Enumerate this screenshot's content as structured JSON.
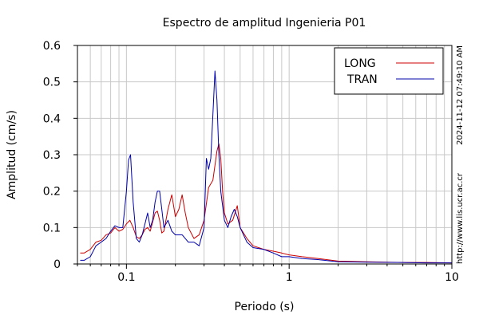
{
  "chart_data": {
    "type": "line",
    "title": "Espectro de amplitud Ingenieria P01",
    "xlabel": "Periodo (s)",
    "ylabel": "Amplitud (cm/s)",
    "x_scale": "log",
    "xlim": [
      0.05,
      10
    ],
    "ylim": [
      0,
      0.6
    ],
    "x_tick_labels": [
      {
        "value": 0.1,
        "label": "0.1"
      },
      {
        "value": 1,
        "label": "1"
      },
      {
        "value": 10,
        "label": "10"
      }
    ],
    "y_tick_labels": [
      {
        "value": 0,
        "label": "0"
      },
      {
        "value": 0.1,
        "label": "0.1"
      },
      {
        "value": 0.2,
        "label": "0.2"
      },
      {
        "value": 0.3,
        "label": "0.3"
      },
      {
        "value": 0.4,
        "label": "0.4"
      },
      {
        "value": 0.5,
        "label": "0.5"
      },
      {
        "value": 0.6,
        "label": "0.6"
      }
    ],
    "grid": true,
    "legend_position": "top-right",
    "series": [
      {
        "name": "LONG",
        "color": "#cc0000",
        "x": [
          0.052,
          0.055,
          0.06,
          0.065,
          0.07,
          0.075,
          0.08,
          0.085,
          0.09,
          0.095,
          0.1,
          0.105,
          0.11,
          0.115,
          0.12,
          0.125,
          0.13,
          0.135,
          0.14,
          0.15,
          0.155,
          0.16,
          0.165,
          0.17,
          0.18,
          0.19,
          0.2,
          0.21,
          0.22,
          0.23,
          0.24,
          0.26,
          0.28,
          0.3,
          0.32,
          0.34,
          0.36,
          0.37,
          0.38,
          0.39,
          0.4,
          0.42,
          0.45,
          0.48,
          0.5,
          0.55,
          0.6,
          0.7,
          0.8,
          0.9,
          1.0,
          1.2,
          1.5,
          2.0,
          3.0,
          5.0,
          7.0,
          10.0
        ],
        "y": [
          0.03,
          0.03,
          0.04,
          0.06,
          0.065,
          0.08,
          0.085,
          0.1,
          0.09,
          0.095,
          0.11,
          0.12,
          0.1,
          0.075,
          0.07,
          0.08,
          0.095,
          0.1,
          0.09,
          0.14,
          0.145,
          0.12,
          0.085,
          0.09,
          0.15,
          0.19,
          0.13,
          0.15,
          0.19,
          0.14,
          0.1,
          0.07,
          0.08,
          0.12,
          0.21,
          0.23,
          0.31,
          0.33,
          0.29,
          0.2,
          0.14,
          0.11,
          0.12,
          0.16,
          0.1,
          0.07,
          0.05,
          0.04,
          0.035,
          0.03,
          0.025,
          0.02,
          0.015,
          0.008,
          0.006,
          0.004,
          0.004,
          0.003
        ]
      },
      {
        "name": "TRAN",
        "color": "#0000aa",
        "x": [
          0.052,
          0.055,
          0.06,
          0.065,
          0.07,
          0.075,
          0.08,
          0.085,
          0.09,
          0.095,
          0.1,
          0.103,
          0.106,
          0.11,
          0.115,
          0.12,
          0.125,
          0.13,
          0.135,
          0.14,
          0.145,
          0.15,
          0.155,
          0.16,
          0.165,
          0.17,
          0.18,
          0.19,
          0.2,
          0.22,
          0.24,
          0.26,
          0.28,
          0.3,
          0.31,
          0.32,
          0.33,
          0.34,
          0.35,
          0.36,
          0.37,
          0.38,
          0.4,
          0.42,
          0.44,
          0.46,
          0.48,
          0.5,
          0.55,
          0.6,
          0.7,
          0.8,
          0.9,
          1.0,
          1.2,
          1.5,
          2.0,
          3.0,
          5.0,
          7.0,
          10.0
        ],
        "y": [
          0.01,
          0.01,
          0.02,
          0.05,
          0.06,
          0.07,
          0.09,
          0.105,
          0.1,
          0.1,
          0.2,
          0.285,
          0.3,
          0.17,
          0.07,
          0.06,
          0.08,
          0.11,
          0.14,
          0.1,
          0.12,
          0.17,
          0.2,
          0.2,
          0.15,
          0.1,
          0.12,
          0.09,
          0.08,
          0.08,
          0.06,
          0.06,
          0.05,
          0.1,
          0.29,
          0.26,
          0.29,
          0.41,
          0.53,
          0.45,
          0.3,
          0.2,
          0.12,
          0.1,
          0.13,
          0.15,
          0.13,
          0.1,
          0.06,
          0.045,
          0.04,
          0.03,
          0.02,
          0.02,
          0.015,
          0.012,
          0.006,
          0.005,
          0.004,
          0.003,
          0.003
        ]
      }
    ]
  },
  "side_text": {
    "timestamp": "2024-11-12 07:49:10 AM",
    "url": "http://www.lis.ucr.ac.cr"
  }
}
